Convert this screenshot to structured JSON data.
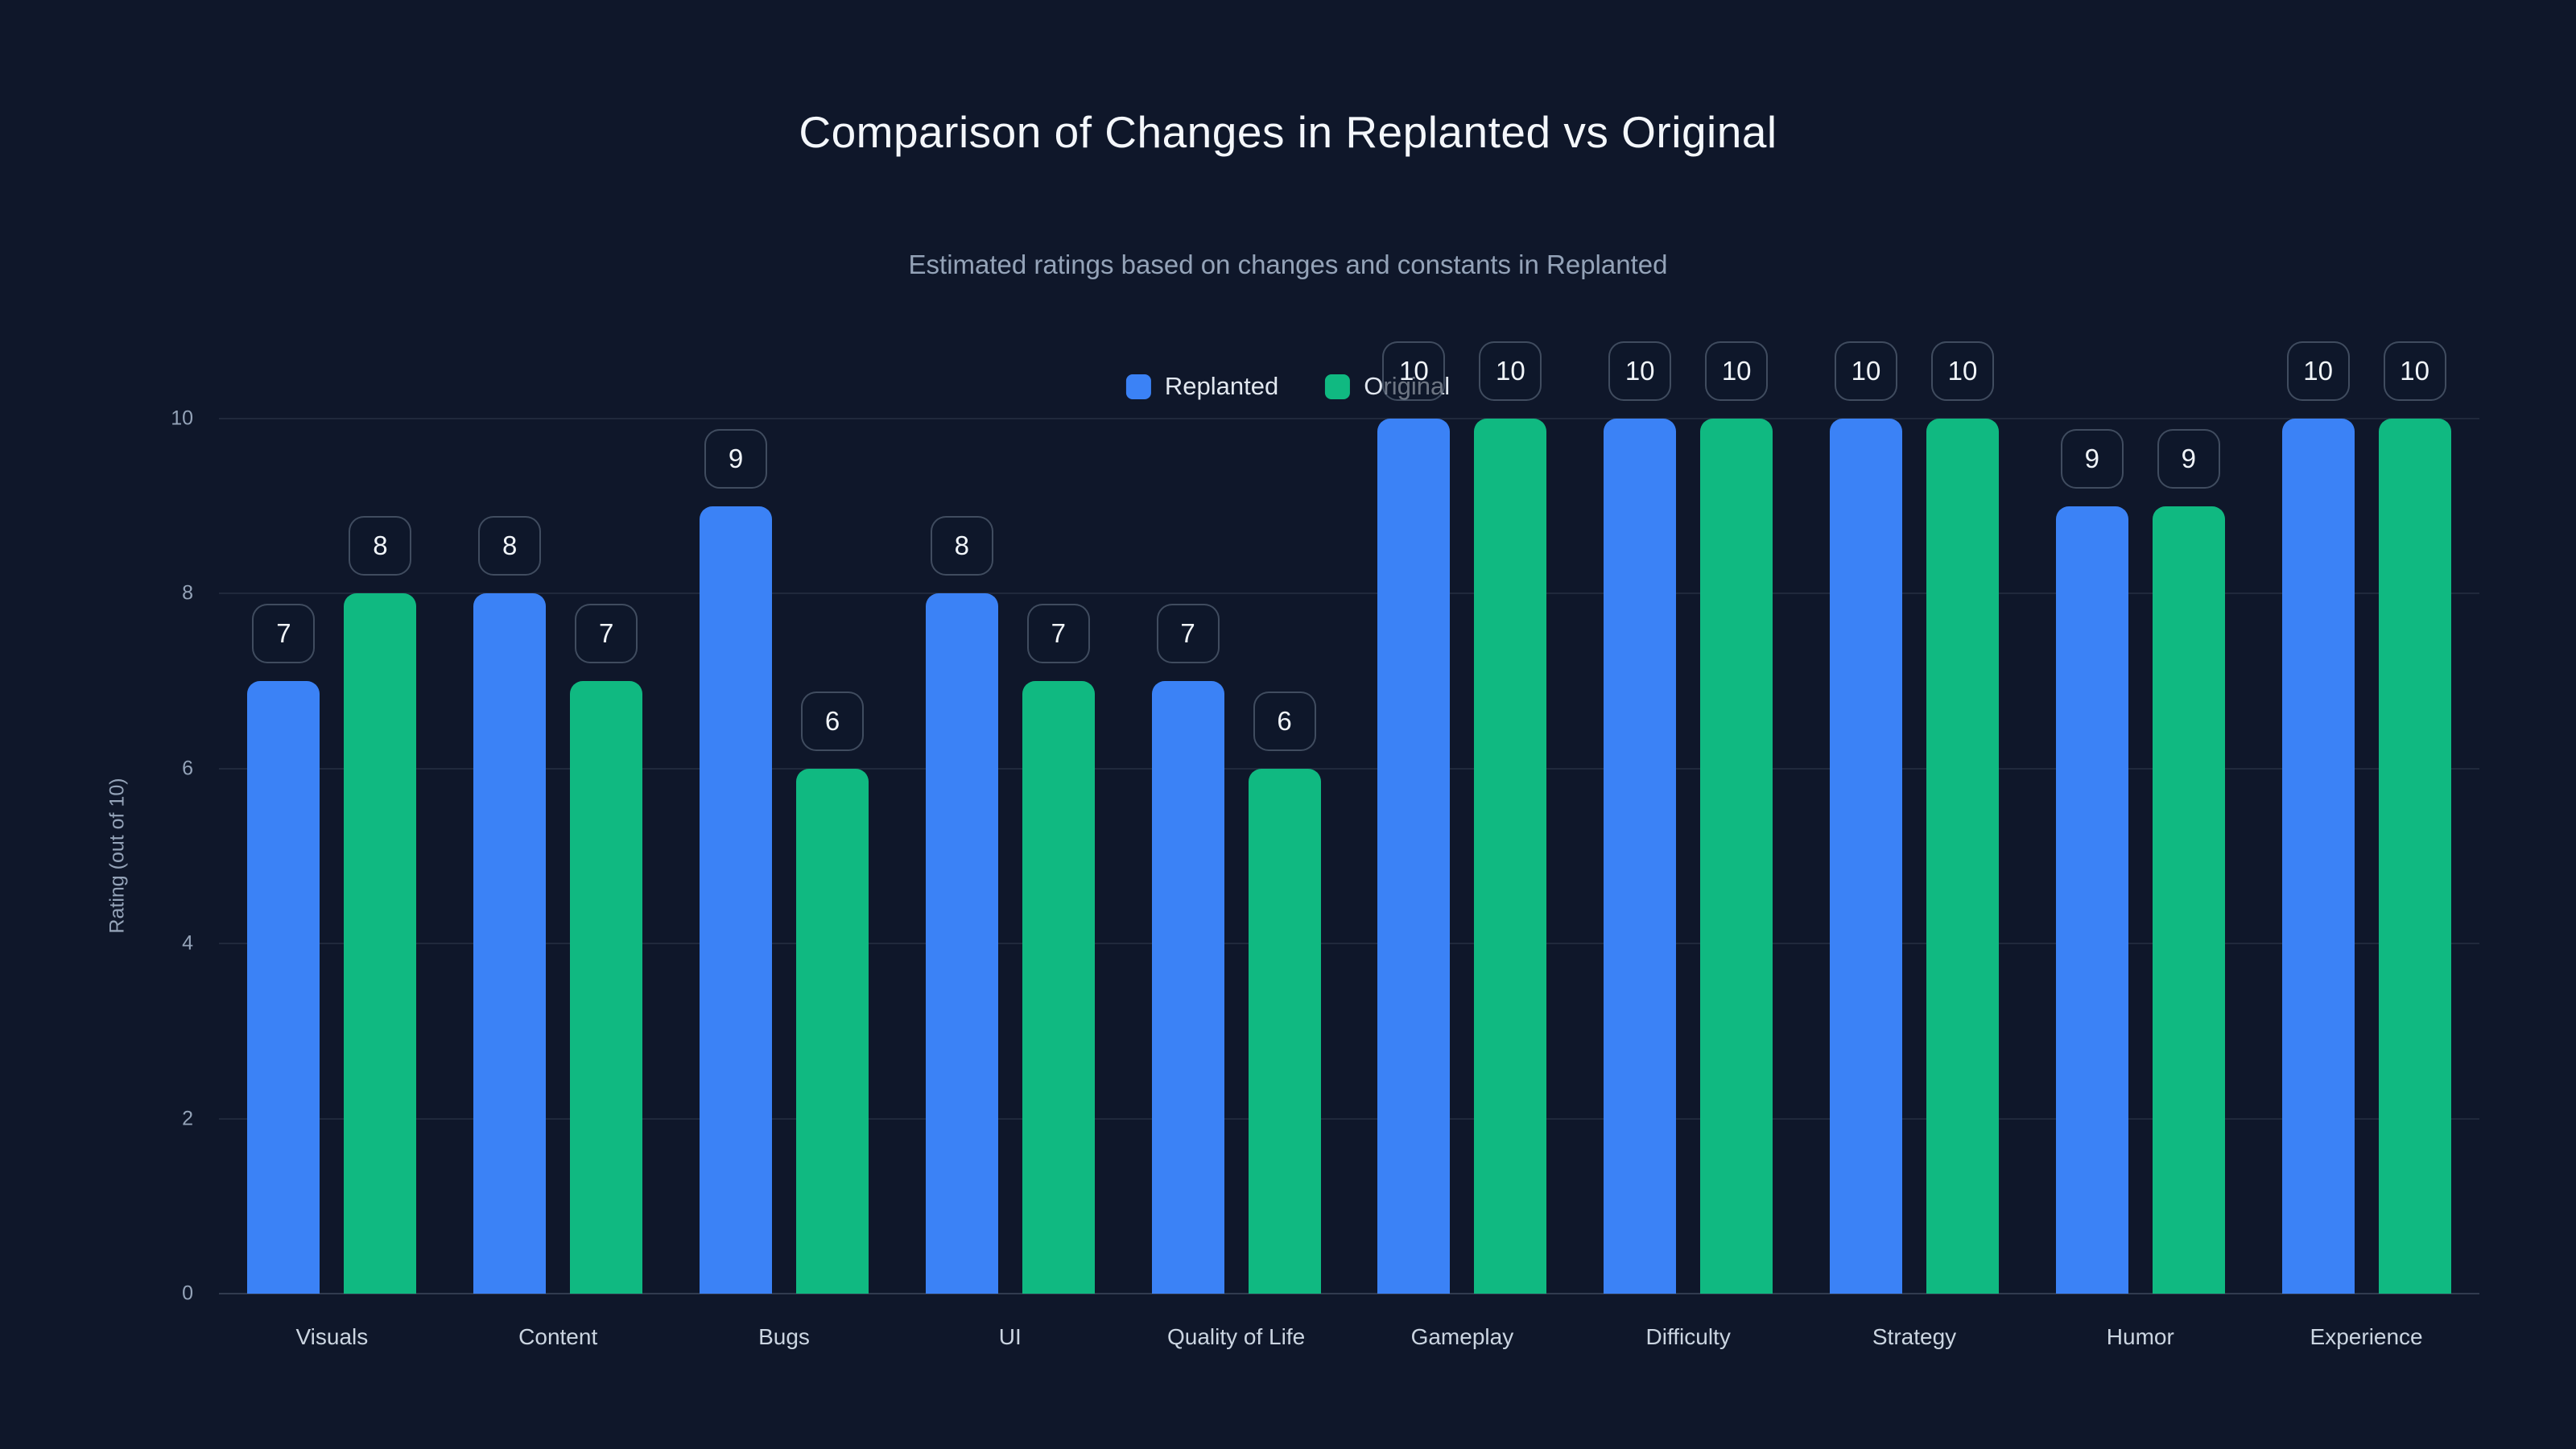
{
  "title": "Comparison of Changes in Replanted vs Original",
  "subtitle": "Estimated ratings based on changes and constants in Replanted",
  "legend": {
    "items": [
      {
        "label": "Replanted",
        "color": "#3b82f6"
      },
      {
        "label": "Original",
        "color": "#10b981"
      }
    ]
  },
  "y_axis": {
    "label": "Rating (out of 10)",
    "ticks": [
      0,
      2,
      4,
      6,
      8,
      10
    ],
    "min": 0,
    "max": 10
  },
  "colors": {
    "background": "#0f172a",
    "replanted_bar": "#3b82f6",
    "original_bar": "#10b981",
    "gridline": "rgba(148,163,184,0.13)",
    "badge_border": "rgba(148,163,184,0.38)",
    "title_text": "#f4f7fb",
    "subtitle_text": "#94a3b8",
    "tick_text": "#94a3b8",
    "category_text": "#cbd5e1"
  },
  "chart_data": {
    "type": "bar",
    "title": "Comparison of Changes in Replanted vs Original",
    "subtitle": "Estimated ratings based on changes and constants in Replanted",
    "categories": [
      "Visuals",
      "Content",
      "Bugs",
      "UI",
      "Quality of Life",
      "Gameplay",
      "Difficulty",
      "Strategy",
      "Humor",
      "Experience"
    ],
    "series": [
      {
        "name": "Replanted",
        "color": "#3b82f6",
        "values": [
          7,
          8,
          9,
          8,
          7,
          10,
          10,
          10,
          9,
          10
        ]
      },
      {
        "name": "Original",
        "color": "#10b981",
        "values": [
          8,
          7,
          6,
          7,
          6,
          10,
          10,
          10,
          9,
          10
        ]
      }
    ],
    "xlabel": "",
    "ylabel": "Rating (out of 10)",
    "ylim": [
      0,
      10
    ],
    "grid": true,
    "legend_position": "top-center",
    "value_labels": "rounded badge above each bar"
  }
}
